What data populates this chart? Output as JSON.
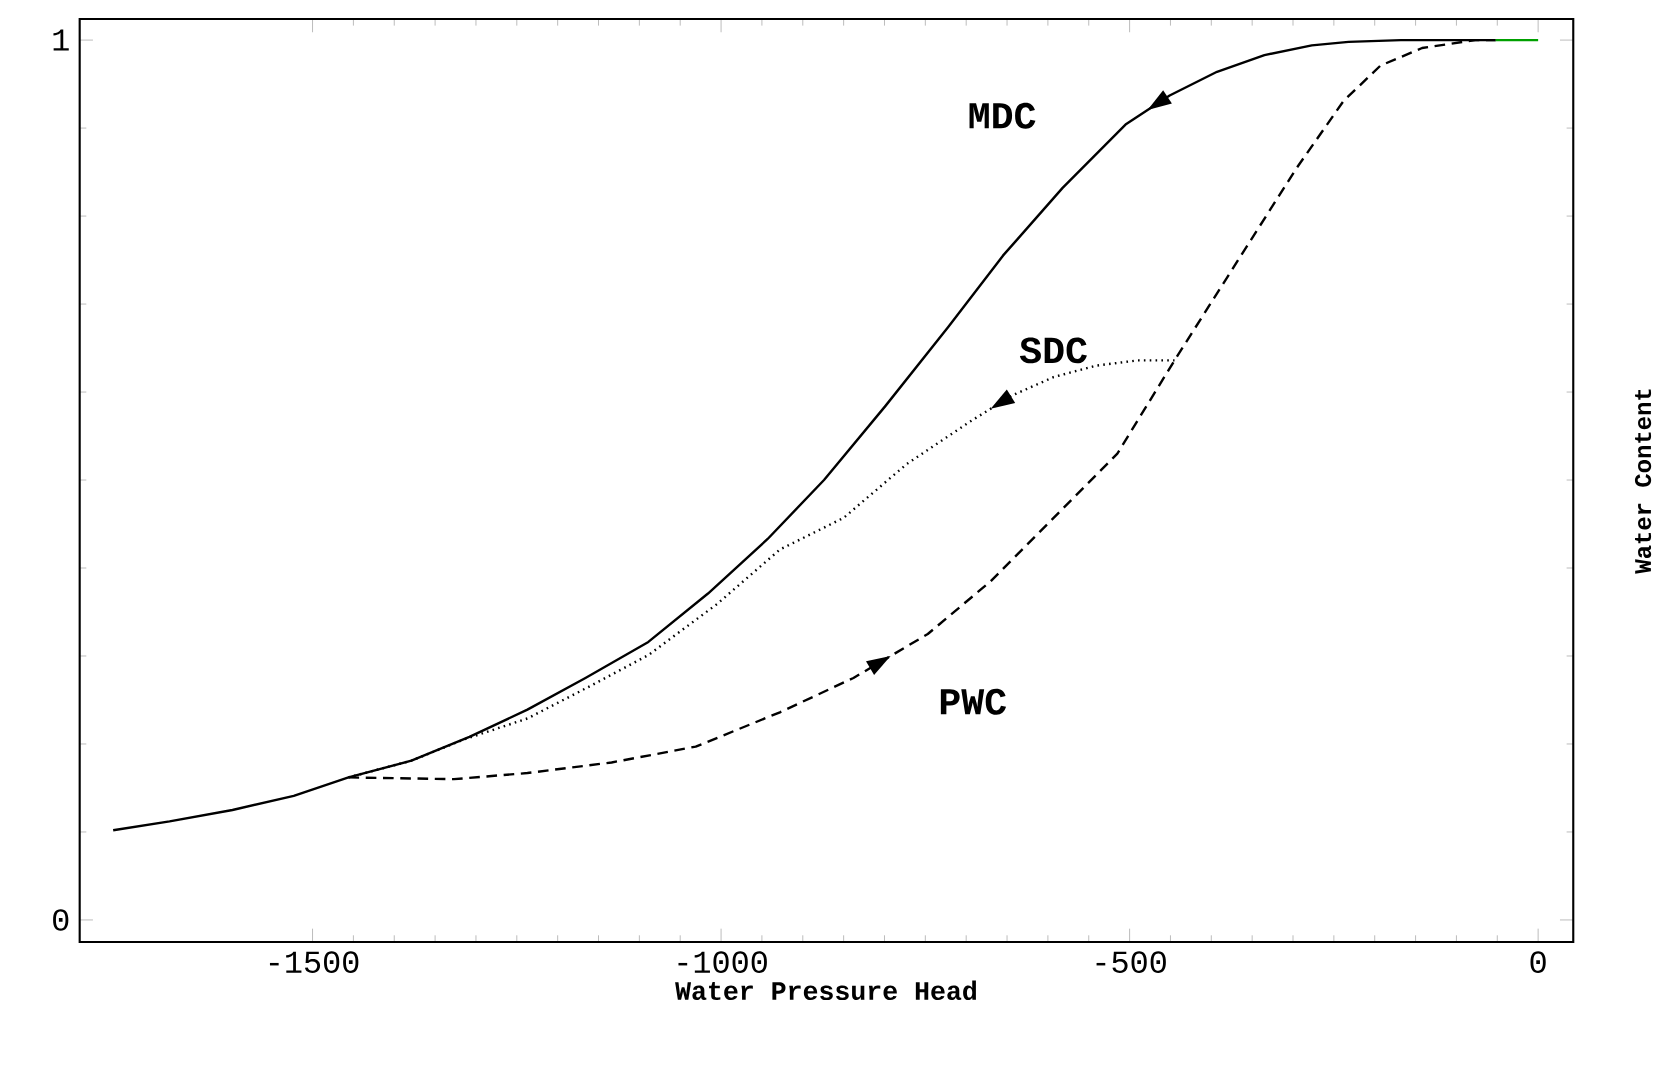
{
  "chart_data": {
    "type": "line",
    "xlabel": "Water Pressure Head",
    "ylabel": "Water Content",
    "xlim": [
      -1785,
      43
    ],
    "ylim": [
      -0.025,
      1.024
    ],
    "xticks": [
      -1500,
      -1000,
      -500,
      0
    ],
    "yticks": [
      0,
      1
    ],
    "grid": false,
    "marker": "none",
    "series": [
      {
        "name": "MDC",
        "color": "#000000",
        "line_style": "solid",
        "x": [
          -1744,
          -1675,
          -1598,
          -1523,
          -1456,
          -1379,
          -1308,
          -1237,
          -1166,
          -1089,
          -1016,
          -943,
          -874,
          -799,
          -722,
          -655,
          -582,
          -505,
          -451,
          -393,
          -335,
          -277,
          -232,
          -168,
          -52
        ],
        "values": [
          0.102,
          0.112,
          0.125,
          0.141,
          0.162,
          0.181,
          0.208,
          0.239,
          0.275,
          0.316,
          0.371,
          0.433,
          0.5,
          0.584,
          0.674,
          0.755,
          0.832,
          0.904,
          0.937,
          0.964,
          0.983,
          0.994,
          0.998,
          1.0,
          1.0
        ]
      },
      {
        "name": "SDC",
        "color": "#000000",
        "line_style": "dotted",
        "x": [
          -1456,
          -1379,
          -1315,
          -1237,
          -1166,
          -1089,
          -1005,
          -928,
          -850,
          -773,
          -696,
          -644,
          -593,
          -541,
          -490,
          -445
        ],
        "values": [
          0.162,
          0.181,
          0.205,
          0.229,
          0.263,
          0.301,
          0.359,
          0.421,
          0.457,
          0.518,
          0.566,
          0.596,
          0.617,
          0.63,
          0.636,
          0.636
        ]
      },
      {
        "name": "PWC",
        "color": "#000000",
        "line_style": "dashed",
        "x": [
          -1456,
          -1327,
          -1237,
          -1134,
          -1031,
          -928,
          -838,
          -747,
          -670,
          -593,
          -515,
          -445,
          -374,
          -296,
          -238,
          -193,
          -142,
          -77,
          -52
        ],
        "values": [
          0.162,
          0.16,
          0.167,
          0.179,
          0.197,
          0.236,
          0.275,
          0.325,
          0.385,
          0.457,
          0.53,
          0.636,
          0.74,
          0.854,
          0.931,
          0.971,
          0.991,
          1.0,
          1.0
        ]
      },
      {
        "color": "#00a000",
        "line_style": "solid",
        "x": [
          -52,
          0
        ],
        "values": [
          1.0,
          1.0
        ]
      }
    ]
  }
}
